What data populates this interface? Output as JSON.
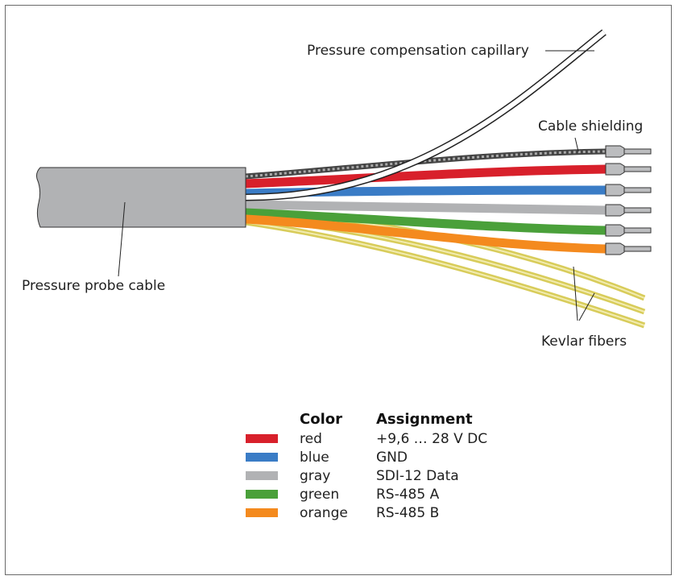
{
  "labels": {
    "capillary": "Pressure compensation capillary",
    "shielding": "Cable shielding",
    "probe_cable": "Pressure probe cable",
    "kevlar": "Kevlar fibers"
  },
  "legend": {
    "header_color": "Color",
    "header_assignment": "Assignment",
    "rows": [
      {
        "swatch": "#d8202b",
        "color_name": "red",
        "assignment": "+9,6 … 28 V DC"
      },
      {
        "swatch": "#3a7cc6",
        "color_name": "blue",
        "assignment": "GND"
      },
      {
        "swatch": "#b1b2b4",
        "color_name": "gray",
        "assignment": "SDI-12 Data"
      },
      {
        "swatch": "#4aa03a",
        "color_name": "green",
        "assignment": "RS-485 A"
      },
      {
        "swatch": "#f48a1e",
        "color_name": "orange",
        "assignment": "RS-485 B"
      }
    ]
  },
  "colors": {
    "cable_gray": "#b1b2b4",
    "shield_dark": "#5a5a5a",
    "kevlar": "#d8cc5a",
    "ferrule": "#bcbdbf"
  }
}
